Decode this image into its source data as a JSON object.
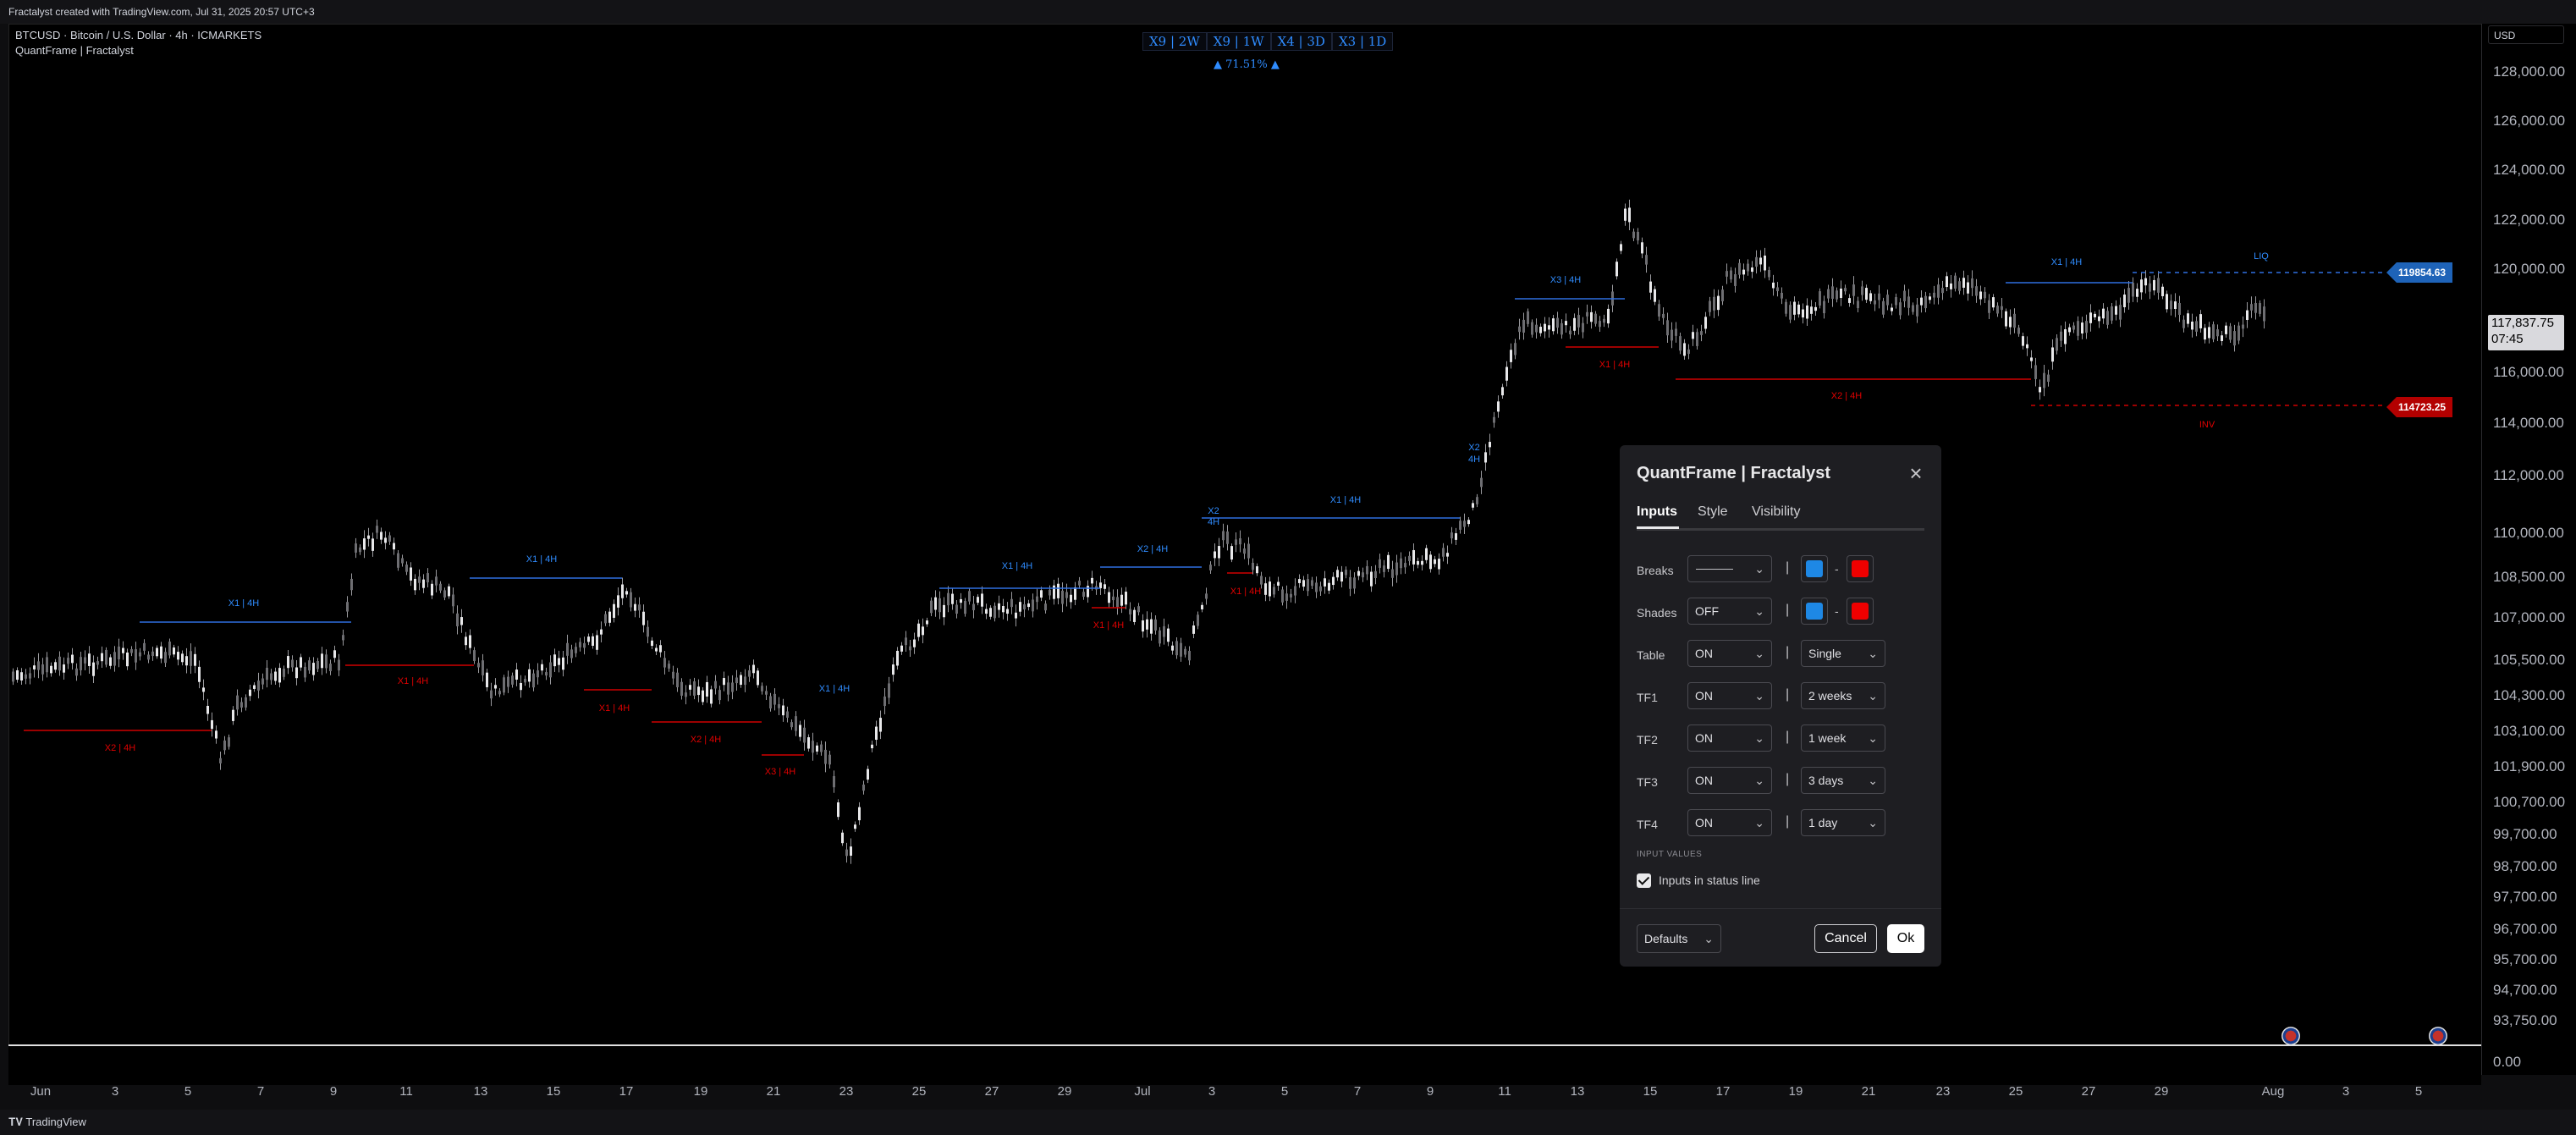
{
  "header": {
    "attribution": "Fractalyst created with TradingView.com, Jul 31, 2025 20:57 UTC+3",
    "symbol_line": "BTCUSD · Bitcoin / U.S. Dollar · 4h · ICMARKETS",
    "indicator_line": "QuantFrame | Fractalyst"
  },
  "tf_table": [
    "X9 | 2W",
    "X9 | 1W",
    "X4 | 3D",
    "X3 | 1D"
  ],
  "tf_pct": "▲ 71.51% ▲",
  "price_axis": {
    "currency": "USD",
    "ticks": [
      "128,000.00",
      "126,000.00",
      "124,000.00",
      "122,000.00",
      "120,000.00",
      "116,000.00",
      "114,000.00",
      "112,000.00",
      "110,000.00",
      "108,500.00",
      "107,000.00",
      "105,500.00",
      "104,300.00",
      "103,100.00",
      "101,900.00",
      "100,700.00",
      "99,700.00",
      "98,700.00",
      "97,700.00",
      "96,700.00",
      "95,700.00",
      "94,700.00",
      "93,750.00",
      "0.00"
    ],
    "current_price": "117,837.75",
    "countdown": "07:45",
    "tag_blue": "119854.63",
    "tag_red": "114723.25"
  },
  "time_axis": [
    "Jun",
    "3",
    "5",
    "7",
    "9",
    "11",
    "13",
    "15",
    "17",
    "19",
    "21",
    "23",
    "25",
    "27",
    "29",
    "Jul",
    "3",
    "5",
    "7",
    "9",
    "11",
    "13",
    "15",
    "17",
    "19",
    "21",
    "23",
    "25",
    "27",
    "29",
    "Aug",
    "3",
    "5"
  ],
  "annotations": {
    "blue": [
      "X1 | 4H",
      "X1 | 4H",
      "X1 | 4H",
      "X2 | 4H",
      "X1 | 4H",
      "X1 | 4H",
      "X3 | 4H",
      "X1 | 4H"
    ],
    "red": [
      "X2 | 4H",
      "X1 | 4H",
      "X1 | 4H",
      "X2 | 4H",
      "X3 | 4H",
      "X1 | 4H",
      "X1 | 4H",
      "X1 | 4H",
      "X2 | 4H"
    ],
    "stack_x2": "X2",
    "stack_4h": "4H",
    "liq": "LIQ",
    "inv": "INV"
  },
  "footer": {
    "brand": "TradingView"
  },
  "dialog": {
    "title": "QuantFrame | Fractalyst",
    "tabs": [
      "Inputs",
      "Style",
      "Visibility"
    ],
    "rows": [
      {
        "label": "Breaks",
        "a": "",
        "b": ""
      },
      {
        "label": "Shades",
        "a": "OFF",
        "b": ""
      },
      {
        "label": "Table",
        "a": "ON",
        "b": "Single"
      },
      {
        "label": "TF1",
        "a": "ON",
        "b": "2 weeks"
      },
      {
        "label": "TF2",
        "a": "ON",
        "b": "1 week"
      },
      {
        "label": "TF3",
        "a": "ON",
        "b": "3 days"
      },
      {
        "label": "TF4",
        "a": "ON",
        "b": "1 day"
      }
    ],
    "separator": "|",
    "dash": "-",
    "section_title": "INPUT VALUES",
    "checkbox_label": "Inputs in status line",
    "defaults_label": "Defaults",
    "cancel_label": "Cancel",
    "ok_label": "Ok",
    "colors": {
      "bull": "#1e88e5",
      "bear": "#f00000"
    }
  }
}
